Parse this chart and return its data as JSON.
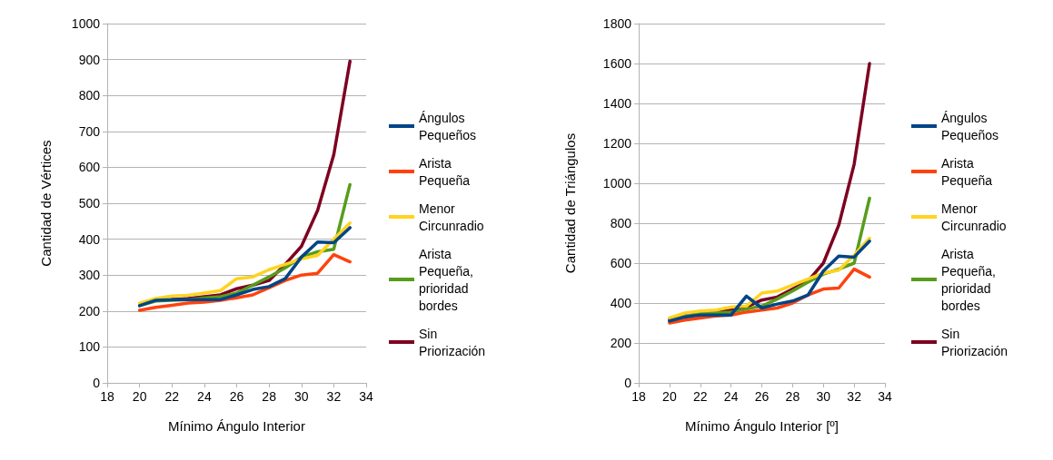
{
  "chart_data": [
    {
      "type": "line",
      "xlabel": "Mínimo Ángulo Interior",
      "ylabel": "Cantidad de Vértices",
      "x": [
        20,
        21,
        22,
        23,
        24,
        25,
        26,
        27,
        28,
        29,
        30,
        31,
        32,
        33
      ],
      "xlim": [
        18,
        34
      ],
      "xticks": [
        18,
        20,
        22,
        24,
        26,
        28,
        30,
        32,
        34
      ],
      "ylim": [
        0,
        1000
      ],
      "yticks": [
        0,
        100,
        200,
        300,
        400,
        500,
        600,
        700,
        800,
        900,
        1000
      ],
      "grid": "y",
      "legend": "right",
      "marker": "none",
      "line_style": "solid",
      "series": [
        {
          "name": "Ángulos Pequeños",
          "color": "#004586",
          "values": [
            215,
            230,
            232,
            232,
            232,
            232,
            245,
            260,
            268,
            290,
            350,
            392,
            390,
            432
          ]
        },
        {
          "name": "Arista Pequeña",
          "color": "#ff420e",
          "values": [
            202,
            210,
            216,
            222,
            225,
            230,
            237,
            245,
            265,
            285,
            300,
            305,
            357,
            337
          ]
        },
        {
          "name": "Menor Circunradio",
          "color": "#ffd320",
          "values": [
            222,
            235,
            242,
            244,
            250,
            257,
            290,
            295,
            315,
            330,
            345,
            355,
            400,
            445
          ]
        },
        {
          "name": "Arista Pequeña, prioridad bordes",
          "color": "#579d1c",
          "values": [
            215,
            228,
            230,
            232,
            236,
            240,
            250,
            272,
            295,
            320,
            350,
            365,
            372,
            552
          ]
        },
        {
          "name": "Sin Priorización",
          "color": "#7e0021",
          "values": [
            null,
            null,
            232,
            235,
            240,
            245,
            262,
            272,
            285,
            330,
            380,
            480,
            635,
            895
          ]
        }
      ]
    },
    {
      "type": "line",
      "xlabel": "Mínimo Ángulo Interior [º]",
      "ylabel": "Cantidad de Triángulos",
      "x": [
        20,
        21,
        22,
        23,
        24,
        25,
        26,
        27,
        28,
        29,
        30,
        31,
        32,
        33
      ],
      "xlim": [
        18,
        34
      ],
      "xticks": [
        18,
        20,
        22,
        24,
        26,
        28,
        30,
        32,
        34
      ],
      "ylim": [
        0,
        1800
      ],
      "yticks": [
        0,
        200,
        400,
        600,
        800,
        1000,
        1200,
        1400,
        1600,
        1800
      ],
      "grid": "y",
      "legend": "right",
      "marker": "none",
      "line_style": "solid",
      "series": [
        {
          "name": "Ángulos Pequeños",
          "color": "#004586",
          "values": [
            310,
            330,
            340,
            340,
            340,
            435,
            375,
            395,
            410,
            440,
            560,
            635,
            630,
            710
          ]
        },
        {
          "name": "Arista Pequeña",
          "color": "#ff420e",
          "values": [
            300,
            315,
            325,
            335,
            340,
            355,
            365,
            375,
            400,
            440,
            470,
            475,
            570,
            530
          ]
        },
        {
          "name": "Menor Circunradio",
          "color": "#ffd320",
          "values": [
            325,
            350,
            360,
            365,
            380,
            385,
            450,
            460,
            490,
            520,
            550,
            565,
            640,
            725
          ]
        },
        {
          "name": "Arista Pequeña, prioridad bordes",
          "color": "#579d1c",
          "values": [
            315,
            335,
            345,
            350,
            355,
            370,
            385,
            420,
            460,
            505,
            545,
            570,
            600,
            925
          ]
        },
        {
          "name": "Sin Priorización",
          "color": "#7e0021",
          "values": [
            318,
            340,
            345,
            355,
            365,
            380,
            415,
            430,
            470,
            510,
            600,
            790,
            1095,
            1600
          ]
        }
      ]
    }
  ]
}
